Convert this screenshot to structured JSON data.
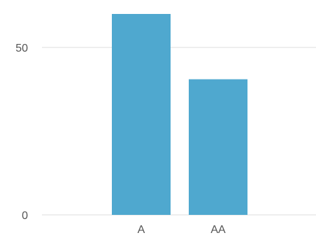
{
  "chart_data": {
    "type": "bar",
    "categories": [
      "A",
      "AA"
    ],
    "values": [
      60,
      40.5
    ],
    "ylim": [
      0,
      60
    ],
    "yticks": [
      0,
      50
    ],
    "ytick_labels": [
      "0",
      "50"
    ],
    "grid": true,
    "title": "",
    "xlabel": "",
    "ylabel": "",
    "bar_color": "#4fa8cf",
    "grid_color": "#dddddd"
  }
}
